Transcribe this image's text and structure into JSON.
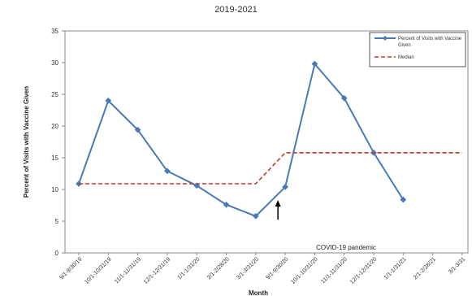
{
  "chart_data": {
    "type": "line",
    "title": "2019-2021",
    "xlabel": "Month",
    "ylabel": "Percent of Visits with Vaccine Given",
    "ylim": [
      0,
      35
    ],
    "yticks": [
      "0",
      "5",
      "10",
      "15",
      "20",
      "25",
      "30",
      "35"
    ],
    "categories": [
      "9/1-9/30/19",
      "10/1-10/31/19",
      "11/1-11/31/19",
      "12/1-12/31/19",
      "1/1-1/31/20",
      "2/1-2/28/20",
      "3/1-3/31/20",
      "9/1-9/30/20",
      "10/1-10/31/20",
      "11/1-11/31/20",
      "12/1-12/31/20",
      "1/1-1/31/21",
      "2/1-2/28/21",
      "3/1-3/31"
    ],
    "series": [
      {
        "name": "Percent of Visits with Vaccine Given",
        "color": "#4a7ab5",
        "style": "solid",
        "marker": "diamond",
        "values": [
          10.9,
          24.0,
          19.4,
          12.9,
          10.6,
          7.6,
          5.8,
          10.4,
          29.8,
          24.4,
          15.8,
          8.4,
          null,
          null
        ]
      },
      {
        "name": "Median",
        "color": "#c0392b",
        "style": "dashed",
        "marker": "none",
        "values": [
          10.9,
          10.9,
          10.9,
          10.9,
          10.9,
          10.9,
          10.9,
          15.8,
          15.8,
          15.8,
          15.8,
          15.8,
          15.8,
          15.8
        ]
      }
    ],
    "annotations": [
      {
        "text": "COVID-19 pandemic",
        "category": "9/1-9/30/20",
        "type": "arrow-up"
      }
    ],
    "grid": false,
    "legend": "top-right"
  }
}
